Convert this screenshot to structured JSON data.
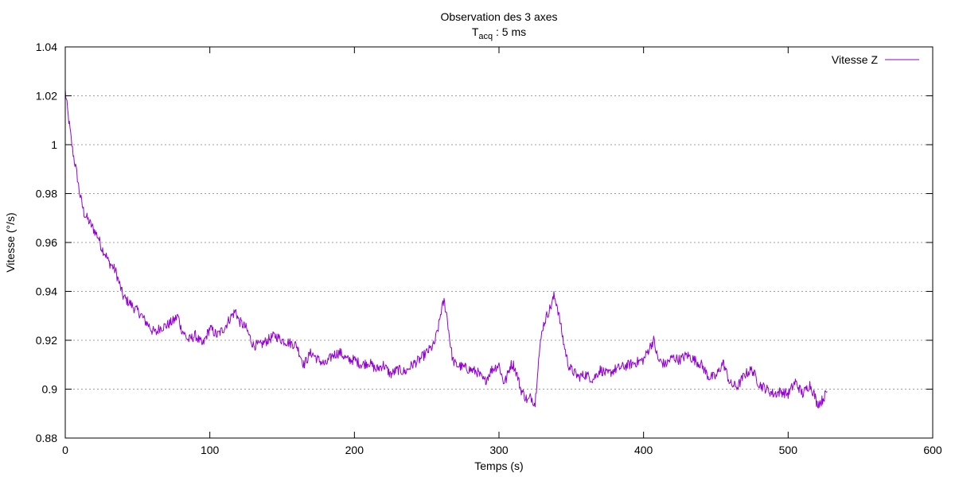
{
  "chart_data": {
    "type": "line",
    "title": "Observation des 3 axes",
    "subtitle": {
      "base": "T",
      "sub": "acq",
      "rest": " : 5 ms"
    },
    "xlabel": "Temps (s)",
    "ylabel": "Vitesse (°/s)",
    "xlim": [
      0,
      600
    ],
    "ylim": [
      0.88,
      1.04
    ],
    "x_ticks": [
      0,
      100,
      200,
      300,
      400,
      500,
      600
    ],
    "y_ticks": [
      0.88,
      0.9,
      0.92,
      0.94,
      0.96,
      0.98,
      1,
      1.02,
      1.04
    ],
    "x_tick_labels": [
      "0",
      "100",
      "200",
      "300",
      "400",
      "500",
      "600"
    ],
    "y_tick_labels": [
      "0.88",
      "0.9",
      "0.92",
      "0.94",
      "0.96",
      "0.98",
      "1",
      "1.02",
      "1.04"
    ],
    "grid": "horizontal",
    "legend_position": "top-right",
    "series": [
      {
        "name": "Vitesse Z",
        "color": "#9400d3",
        "x": [
          0,
          2,
          5,
          8,
          10,
          13,
          15,
          18,
          20,
          23,
          25,
          28,
          30,
          33,
          35,
          38,
          40,
          43,
          45,
          48,
          50,
          53,
          55,
          58,
          60,
          63,
          65,
          70,
          75,
          78,
          80,
          85,
          90,
          95,
          100,
          105,
          110,
          115,
          118,
          120,
          125,
          130,
          135,
          140,
          145,
          150,
          155,
          160,
          165,
          170,
          175,
          180,
          185,
          190,
          195,
          200,
          205,
          210,
          215,
          220,
          225,
          230,
          235,
          240,
          245,
          250,
          255,
          258,
          260,
          262,
          264,
          266,
          268,
          270,
          275,
          280,
          285,
          290,
          295,
          300,
          303,
          305,
          308,
          310,
          313,
          315,
          318,
          320,
          322,
          325,
          327,
          330,
          333,
          336,
          338,
          340,
          343,
          345,
          348,
          350,
          355,
          360,
          365,
          370,
          375,
          380,
          385,
          390,
          395,
          400,
          405,
          407,
          410,
          415,
          420,
          425,
          430,
          435,
          440,
          445,
          450,
          455,
          460,
          465,
          470,
          475,
          480,
          485,
          490,
          495,
          500,
          505,
          510,
          515,
          518,
          520,
          523,
          525,
          527
        ],
        "y": [
          1.022,
          1.012,
          0.998,
          0.988,
          0.98,
          0.972,
          0.97,
          0.967,
          0.965,
          0.962,
          0.958,
          0.955,
          0.952,
          0.95,
          0.948,
          0.942,
          0.938,
          0.936,
          0.935,
          0.933,
          0.932,
          0.93,
          0.928,
          0.926,
          0.924,
          0.923,
          0.925,
          0.926,
          0.928,
          0.93,
          0.925,
          0.92,
          0.922,
          0.918,
          0.925,
          0.922,
          0.925,
          0.93,
          0.932,
          0.928,
          0.925,
          0.918,
          0.918,
          0.92,
          0.922,
          0.92,
          0.919,
          0.918,
          0.91,
          0.915,
          0.912,
          0.91,
          0.914,
          0.915,
          0.912,
          0.912,
          0.91,
          0.911,
          0.908,
          0.91,
          0.906,
          0.908,
          0.907,
          0.91,
          0.912,
          0.915,
          0.918,
          0.925,
          0.932,
          0.936,
          0.93,
          0.92,
          0.912,
          0.91,
          0.909,
          0.908,
          0.907,
          0.903,
          0.908,
          0.91,
          0.903,
          0.904,
          0.91,
          0.91,
          0.905,
          0.9,
          0.897,
          0.895,
          0.897,
          0.894,
          0.91,
          0.925,
          0.93,
          0.934,
          0.938,
          0.935,
          0.925,
          0.918,
          0.91,
          0.908,
          0.905,
          0.906,
          0.904,
          0.908,
          0.906,
          0.908,
          0.909,
          0.91,
          0.911,
          0.912,
          0.918,
          0.92,
          0.912,
          0.91,
          0.913,
          0.912,
          0.914,
          0.912,
          0.91,
          0.905,
          0.905,
          0.911,
          0.902,
          0.901,
          0.906,
          0.908,
          0.902,
          0.9,
          0.898,
          0.899,
          0.898,
          0.903,
          0.898,
          0.902,
          0.898,
          0.894,
          0.895,
          0.897,
          0.899
        ]
      }
    ]
  }
}
